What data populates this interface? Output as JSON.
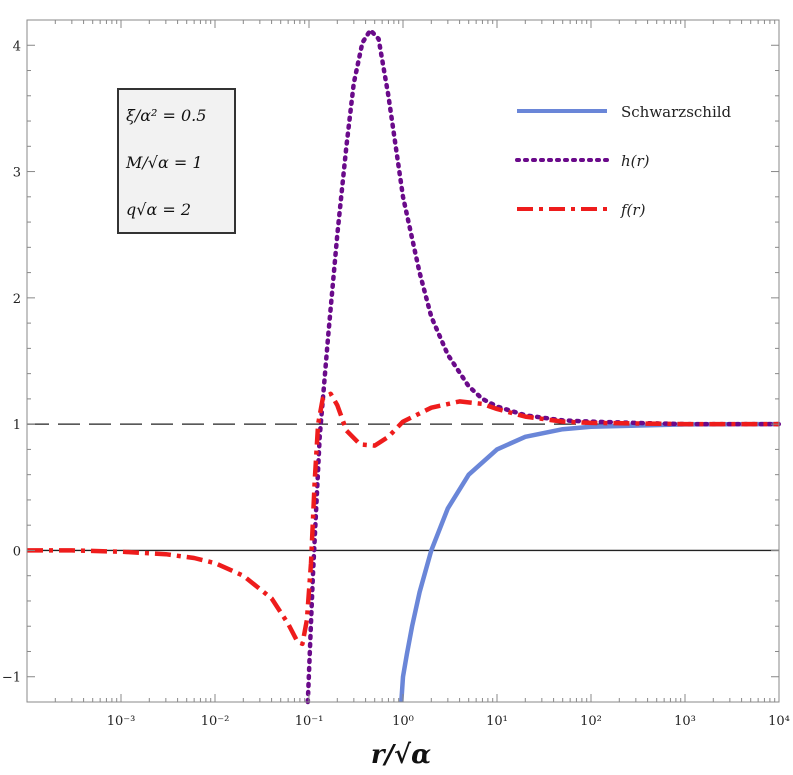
{
  "chart_data": {
    "type": "line",
    "title": "",
    "xlabel": "r/√α",
    "ylabel": "",
    "x_scale": "log",
    "xlim": [
      0.0001,
      10000
    ],
    "ylim": [
      -1.2,
      4.2
    ],
    "grid": false,
    "x_tick_labels": [
      "10⁻³",
      "10⁻²",
      "10⁻¹",
      "10⁰",
      "10¹",
      "10²",
      "10³",
      "10⁴"
    ],
    "x_ticks": [
      0.001,
      0.01,
      0.1,
      1,
      10,
      100,
      1000,
      10000
    ],
    "y_tick_labels": [
      "−1",
      "0",
      "1",
      "2",
      "3",
      "4"
    ],
    "y_ticks": [
      -1,
      0,
      1,
      2,
      3,
      4
    ],
    "reference_lines": [
      0,
      1
    ],
    "legend_placement": "top-right",
    "parameter_box": [
      "ξ/α² = 0.5",
      "M/√α = 1",
      "q√α = 2"
    ],
    "series": [
      {
        "name": "Schwarzschild",
        "color": "#6a86d8",
        "style": "solid",
        "x": [
          0.96,
          1.0,
          1.1,
          1.25,
          1.5,
          2.0,
          3.0,
          5.0,
          10,
          20,
          50,
          100,
          1000,
          10000
        ],
        "y": [
          -1.2,
          -1.0,
          -0.82,
          -0.6,
          -0.33,
          0.0,
          0.333,
          0.6,
          0.8,
          0.9,
          0.96,
          0.98,
          0.998,
          1.0
        ]
      },
      {
        "name": "h(r)",
        "color": "#6a0a8a",
        "style": "dotted",
        "x": [
          0.097,
          0.11,
          0.13,
          0.16,
          0.2,
          0.25,
          0.3,
          0.37,
          0.45,
          0.55,
          0.7,
          1.0,
          1.5,
          2.0,
          3.0,
          5.0,
          7.0,
          10,
          20,
          50,
          100,
          300,
          1000,
          10000
        ],
        "y": [
          -1.2,
          -0.2,
          0.9,
          1.7,
          2.5,
          3.2,
          3.7,
          4.02,
          4.12,
          4.05,
          3.6,
          2.8,
          2.2,
          1.85,
          1.55,
          1.3,
          1.2,
          1.14,
          1.07,
          1.03,
          1.02,
          1.01,
          1.0,
          1.0
        ]
      },
      {
        "name": "f(r)",
        "color": "#ee1c1c",
        "style": "dashdot",
        "x": [
          0.0001,
          0.0003,
          0.001,
          0.003,
          0.006,
          0.01,
          0.02,
          0.04,
          0.06,
          0.075,
          0.085,
          0.095,
          0.105,
          0.115,
          0.125,
          0.14,
          0.17,
          0.2,
          0.25,
          0.35,
          0.5,
          0.7,
          1.0,
          2.0,
          4.0,
          7.0,
          10,
          20,
          50,
          100,
          1000,
          10000
        ],
        "y": [
          0.0,
          0.0,
          -0.01,
          -0.03,
          -0.06,
          -0.1,
          -0.2,
          -0.38,
          -0.58,
          -0.72,
          -0.74,
          -0.55,
          -0.1,
          0.55,
          1.0,
          1.2,
          1.24,
          1.15,
          0.95,
          0.84,
          0.83,
          0.9,
          1.02,
          1.13,
          1.18,
          1.16,
          1.12,
          1.06,
          1.02,
          1.01,
          1.0,
          1.0
        ]
      }
    ]
  }
}
